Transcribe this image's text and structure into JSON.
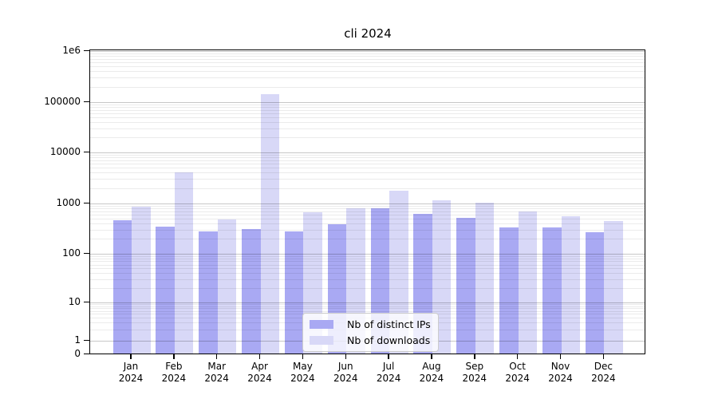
{
  "figure": {
    "title": "cli 2024",
    "background_color": "#ffffff",
    "axis_color": "#000000",
    "grid_major_color": "#c9c9c9",
    "grid_minor_color": "#ebebeb"
  },
  "chart_data": {
    "type": "bar",
    "title": "cli 2024",
    "xlabel": "",
    "ylabel": "",
    "yscale": "symlog",
    "ylim": [
      0,
      1000000
    ],
    "yticks": [
      0,
      1,
      10,
      100,
      1000,
      10000,
      100000,
      1000000
    ],
    "ytick_labels": [
      "0",
      "1",
      "10",
      "100",
      "1000",
      "10000",
      "100000",
      "1e6"
    ],
    "grid": "horizontal, major and log-minor gridlines",
    "legend_position": "lower center",
    "categories": [
      "Jan 2024",
      "Feb 2024",
      "Mar 2024",
      "Apr 2024",
      "May 2024",
      "Jun 2024",
      "Jul 2024",
      "Aug 2024",
      "Sep 2024",
      "Oct 2024",
      "Nov 2024",
      "Dec 2024"
    ],
    "series": [
      {
        "name": "Nb of distinct IPs",
        "color": "#a9a9f3",
        "values": [
          450,
          340,
          270,
          300,
          270,
          370,
          780,
          590,
          500,
          320,
          320,
          260
        ]
      },
      {
        "name": "Nb of downloads",
        "color": "#d8d8f7",
        "values": [
          830,
          3900,
          460,
          140000,
          640,
          780,
          1700,
          1100,
          1000,
          670,
          540,
          430
        ]
      }
    ]
  }
}
